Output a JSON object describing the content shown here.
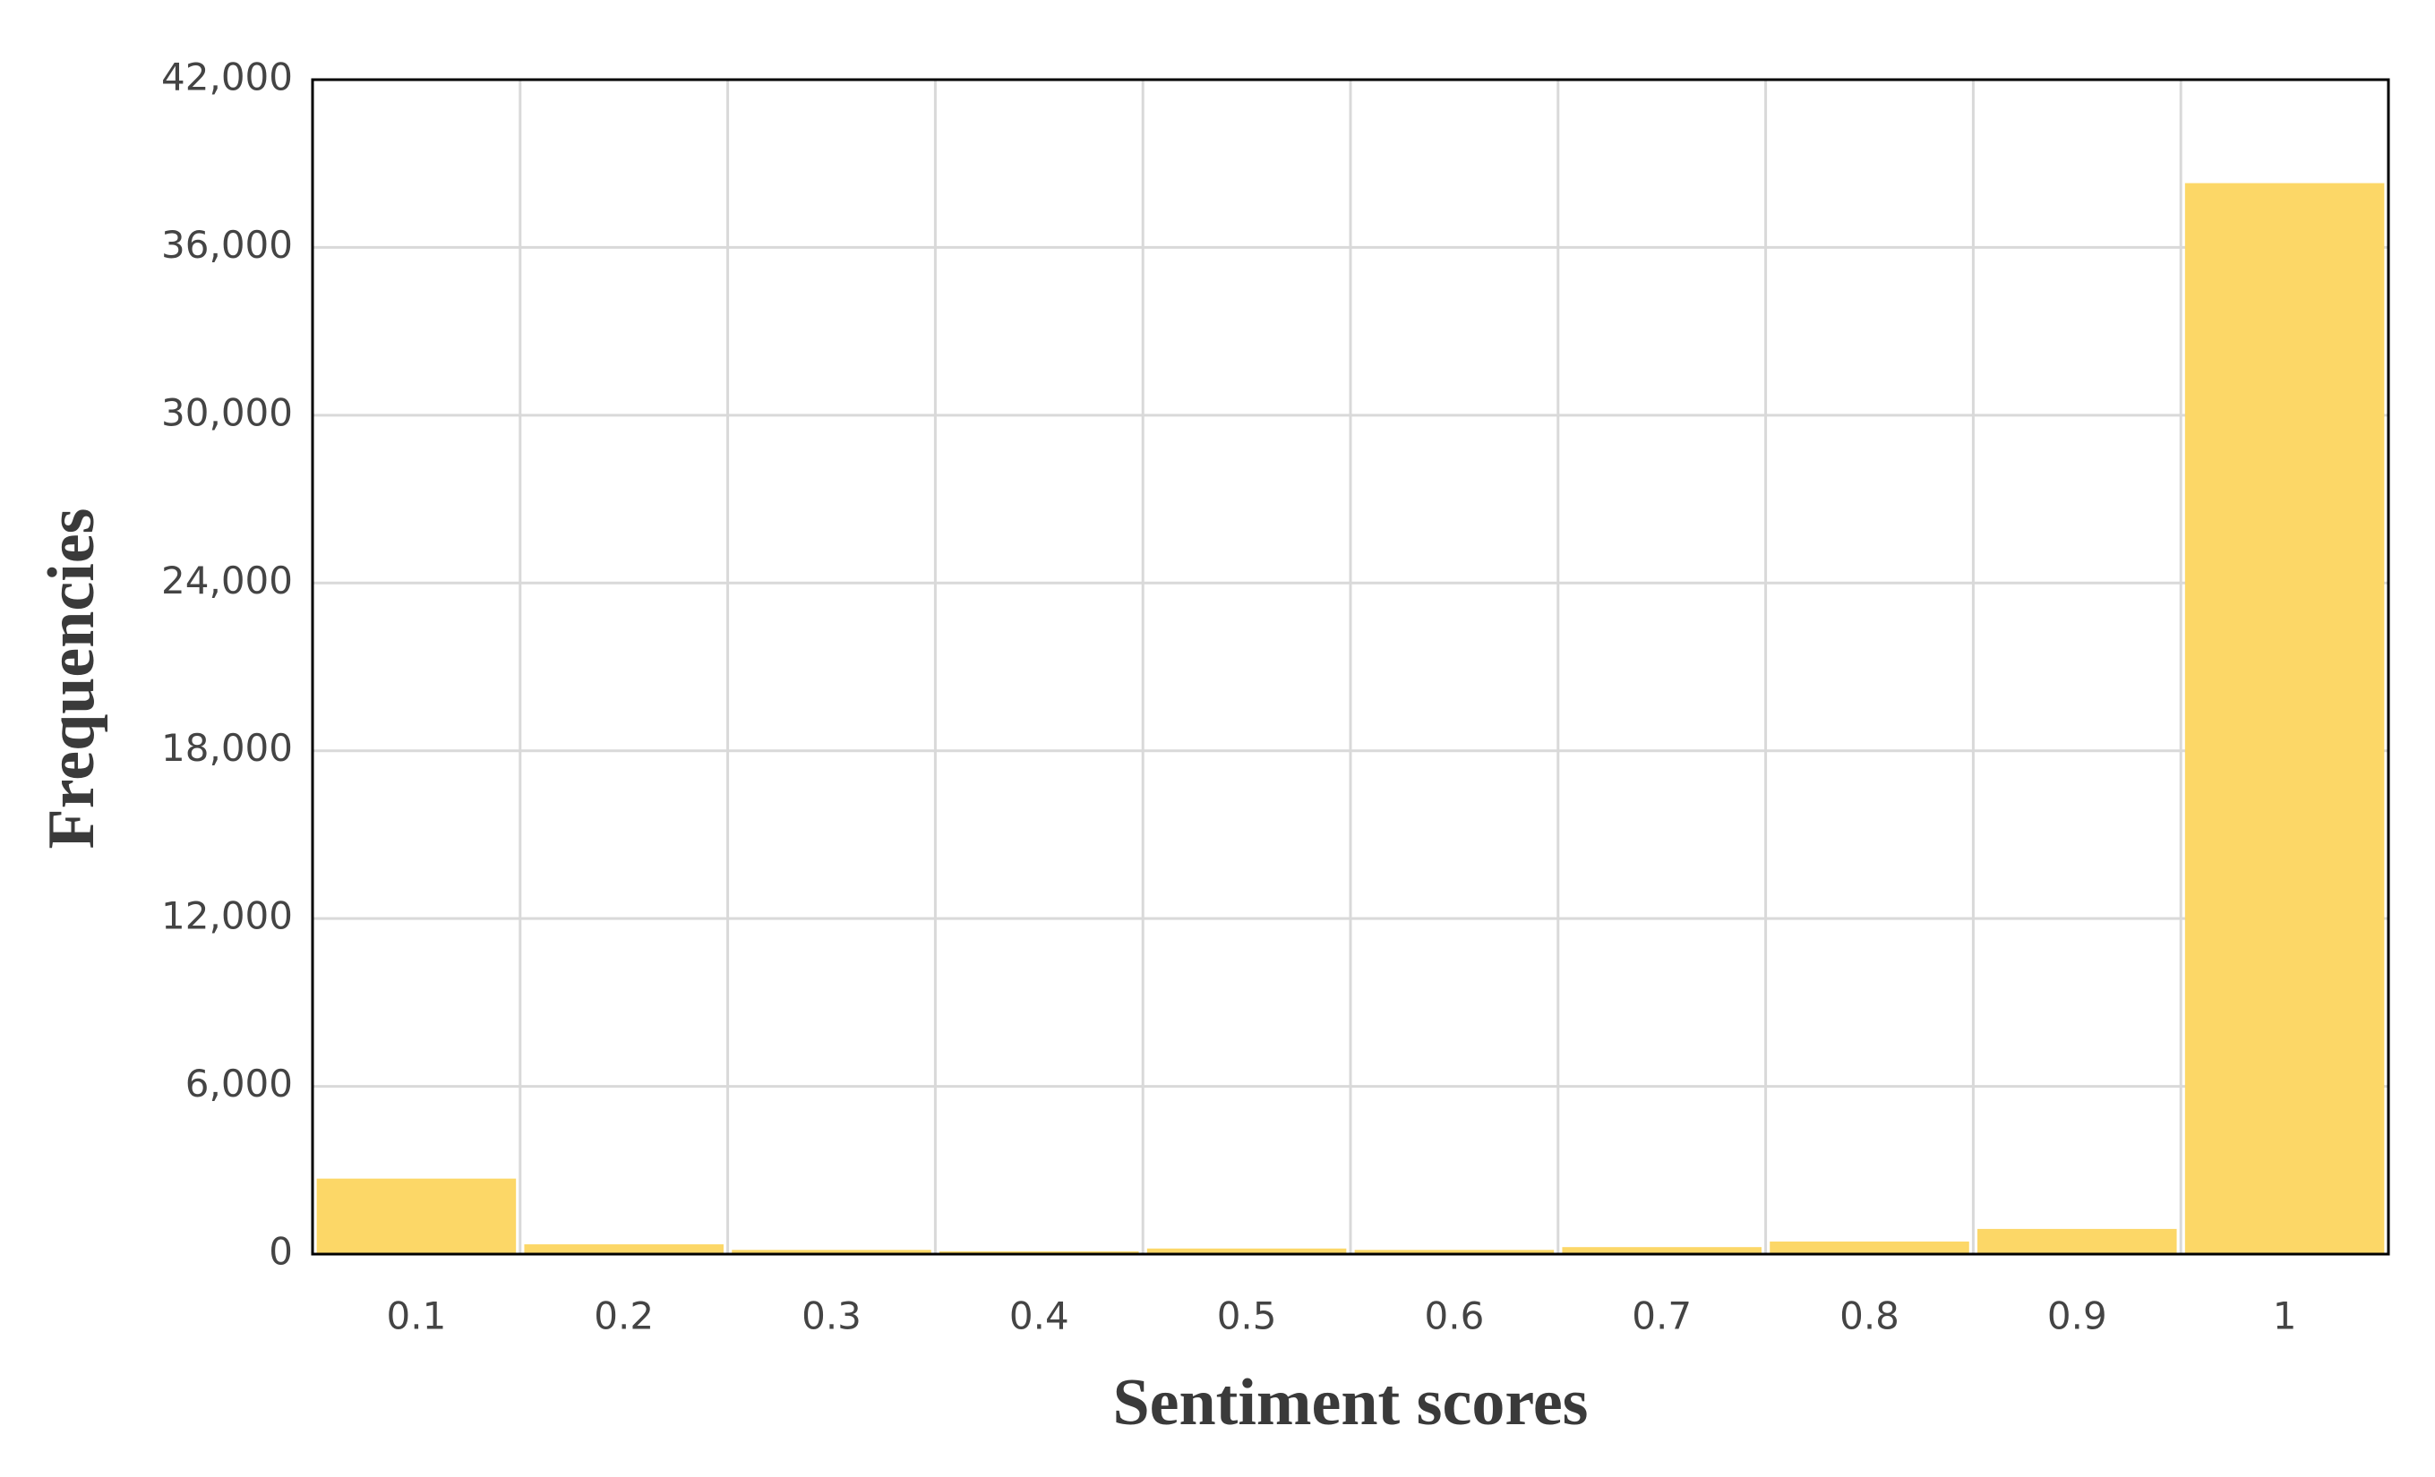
{
  "chart_data": {
    "type": "bar",
    "x_label": "Sentiment scores",
    "y_label": "Frequencies",
    "categories": [
      "0.1",
      "0.2",
      "0.3",
      "0.4",
      "0.5",
      "0.6",
      "0.7",
      "0.8",
      "0.9",
      "1"
    ],
    "values": [
      2700,
      350,
      150,
      100,
      200,
      150,
      250,
      450,
      900,
      38300
    ],
    "color": "#fcd767",
    "ylim": [
      0,
      42000
    ],
    "yticks": [
      0,
      {
        "value": 6000,
        "label": "6,000"
      },
      {
        "value": 12000,
        "label": "12,000"
      },
      {
        "value": 18000,
        "label": "18,000"
      },
      {
        "value": 24000,
        "label": "24,000"
      },
      {
        "value": 30000,
        "label": "30,000"
      },
      {
        "value": 36000,
        "label": "36,000"
      },
      {
        "value": 42000,
        "label": "42,000"
      }
    ],
    "grid": true
  }
}
